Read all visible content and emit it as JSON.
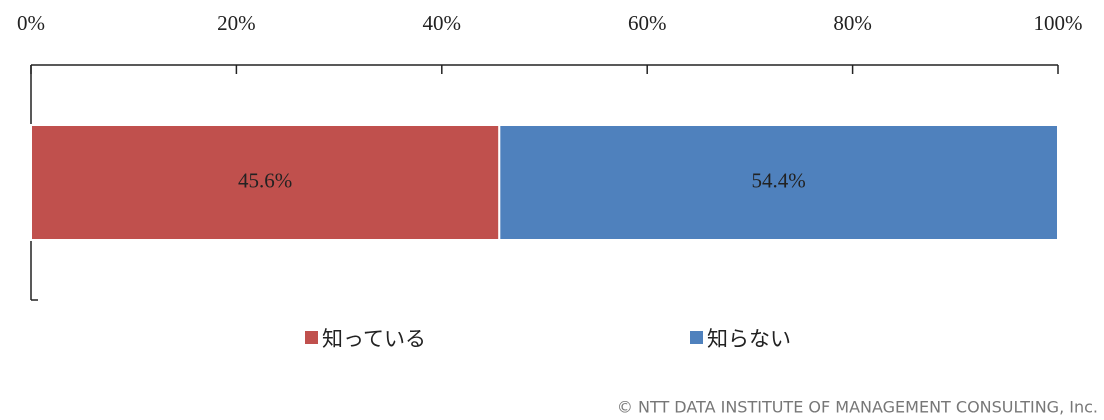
{
  "chart_data": {
    "type": "stacked_bar_horizontal",
    "categories": [
      null
    ],
    "series": [
      {
        "name": "知っている",
        "color": "#c0504d",
        "values": [
          45.6
        ],
        "value_labels": [
          "45.6%"
        ]
      },
      {
        "name": "知らない",
        "color": "#4f81bd",
        "values": [
          54.4
        ],
        "value_labels": [
          "54.4%"
        ]
      }
    ],
    "xlim": [
      0,
      100
    ],
    "xticks": [
      {
        "value": 0,
        "label": "0%"
      },
      {
        "value": 20,
        "label": "20%"
      },
      {
        "value": 40,
        "label": "40%"
      },
      {
        "value": 60,
        "label": "60%"
      },
      {
        "value": 80,
        "label": "80%"
      },
      {
        "value": 100,
        "label": "100%"
      }
    ],
    "legend": "bottom"
  },
  "copyright": "© NTT DATA INSTITUTE OF MANAGEMENT CONSULTING, Inc."
}
